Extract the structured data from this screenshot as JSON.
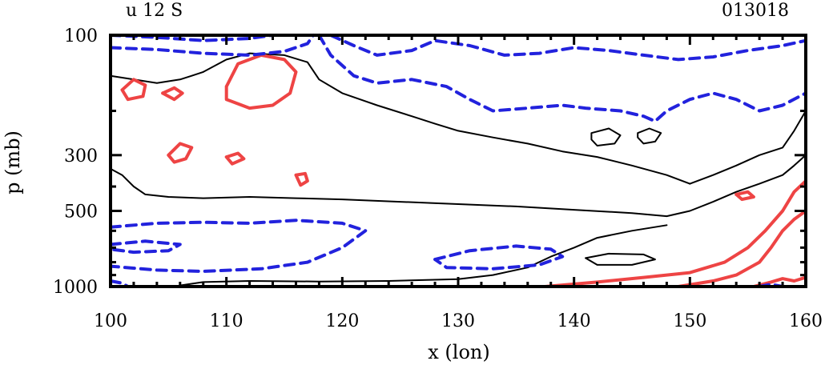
{
  "chart_data": {
    "type": "contour",
    "title_left": "u 12 S",
    "title_right": "013018",
    "xlabel": "x (lon)",
    "ylabel": "p (mb)",
    "xlim": [
      100,
      160
    ],
    "ylim": [
      1000,
      100
    ],
    "y_scale": "log",
    "x_ticks": [
      100,
      110,
      120,
      130,
      140,
      150,
      160
    ],
    "y_ticks": [
      100,
      300,
      500,
      1000
    ],
    "colors": {
      "positive": "#ee4444",
      "negative": "#2222dd",
      "zero": "#000000"
    },
    "contours": [
      {
        "kind": "zero",
        "points": [
          [
            100,
            340
          ],
          [
            101,
            360
          ],
          [
            102,
            400
          ],
          [
            103,
            430
          ],
          [
            105,
            440
          ],
          [
            108,
            445
          ],
          [
            112,
            440
          ],
          [
            116,
            445
          ],
          [
            120,
            450
          ],
          [
            125,
            460
          ],
          [
            130,
            470
          ],
          [
            135,
            480
          ],
          [
            140,
            495
          ],
          [
            145,
            510
          ],
          [
            148,
            525
          ],
          [
            150,
            500
          ],
          [
            152,
            460
          ],
          [
            154,
            420
          ],
          [
            156,
            390
          ],
          [
            158,
            360
          ],
          [
            159,
            330
          ],
          [
            160,
            300
          ]
        ]
      },
      {
        "kind": "zero",
        "points": [
          [
            108,
            140
          ],
          [
            110,
            125
          ],
          [
            112,
            118
          ],
          [
            115,
            120
          ],
          [
            117,
            128
          ],
          [
            118,
            150
          ],
          [
            120,
            170
          ],
          [
            123,
            190
          ],
          [
            126,
            210
          ],
          [
            128,
            225
          ],
          [
            130,
            240
          ],
          [
            133,
            255
          ],
          [
            136,
            270
          ],
          [
            139,
            290
          ],
          [
            142,
            305
          ],
          [
            145,
            330
          ],
          [
            148,
            360
          ],
          [
            150,
            390
          ]
        ]
      },
      {
        "kind": "zero",
        "points": [
          [
            100,
            145
          ],
          [
            102,
            150
          ],
          [
            104,
            155
          ],
          [
            106,
            150
          ],
          [
            107,
            145
          ],
          [
            108,
            140
          ]
        ]
      },
      {
        "kind": "zero",
        "points": [
          [
            150,
            390
          ],
          [
            152,
            360
          ],
          [
            154,
            330
          ],
          [
            156,
            300
          ],
          [
            158,
            280
          ],
          [
            159,
            240
          ],
          [
            160,
            200
          ]
        ]
      },
      {
        "kind": "zero",
        "points": [
          [
            106,
            990
          ],
          [
            108,
            960
          ],
          [
            112,
            950
          ],
          [
            118,
            955
          ],
          [
            124,
            950
          ],
          [
            130,
            935
          ],
          [
            133,
            900
          ],
          [
            136,
            840
          ],
          [
            138,
            760
          ],
          [
            140,
            700
          ],
          [
            142,
            640
          ],
          [
            145,
            600
          ],
          [
            148,
            570
          ]
        ]
      },
      {
        "kind": "zero",
        "points": [
          [
            141.5,
            245
          ],
          [
            143,
            235
          ],
          [
            144,
            250
          ],
          [
            143.5,
            270
          ],
          [
            142,
            275
          ],
          [
            141.5,
            260
          ],
          [
            141.5,
            245
          ]
        ]
      },
      {
        "kind": "zero",
        "points": [
          [
            145.5,
            245
          ],
          [
            146.5,
            235
          ],
          [
            147.5,
            245
          ],
          [
            147,
            265
          ],
          [
            146,
            270
          ],
          [
            145.5,
            255
          ],
          [
            145.5,
            245
          ]
        ]
      },
      {
        "kind": "zero",
        "points": [
          [
            141,
            770
          ],
          [
            143,
            740
          ],
          [
            146,
            745
          ],
          [
            147,
            780
          ],
          [
            145,
            820
          ],
          [
            142,
            820
          ],
          [
            141,
            770
          ]
        ]
      },
      {
        "kind": "positive",
        "points": [
          [
            110,
            160
          ],
          [
            111,
            130
          ],
          [
            113,
            120
          ],
          [
            115,
            125
          ],
          [
            116,
            140
          ],
          [
            115.5,
            170
          ],
          [
            114,
            190
          ],
          [
            112,
            195
          ],
          [
            110,
            180
          ],
          [
            110,
            160
          ]
        ]
      },
      {
        "kind": "positive",
        "points": [
          [
            101,
            165
          ],
          [
            102,
            150
          ],
          [
            103,
            158
          ],
          [
            102.8,
            175
          ],
          [
            101.5,
            180
          ],
          [
            101,
            165
          ]
        ]
      },
      {
        "kind": "positive",
        "points": [
          [
            104.5,
            170
          ],
          [
            105.5,
            162
          ],
          [
            106.2,
            170
          ],
          [
            105.5,
            180
          ],
          [
            104.5,
            170
          ]
        ]
      },
      {
        "kind": "positive",
        "points": [
          [
            105,
            300
          ],
          [
            106,
            270
          ],
          [
            107,
            280
          ],
          [
            106.5,
            310
          ],
          [
            105.5,
            320
          ],
          [
            105,
            300
          ]
        ]
      },
      {
        "kind": "positive",
        "points": [
          [
            110,
            305
          ],
          [
            111,
            295
          ],
          [
            111.5,
            310
          ],
          [
            110.5,
            325
          ],
          [
            110,
            305
          ]
        ]
      },
      {
        "kind": "positive",
        "points": [
          [
            116,
            360
          ],
          [
            116.8,
            355
          ],
          [
            117,
            380
          ],
          [
            116.4,
            395
          ],
          [
            116,
            360
          ]
        ]
      },
      {
        "kind": "positive",
        "points": [
          [
            137.5,
            1000
          ],
          [
            142,
            960
          ],
          [
            146,
            920
          ],
          [
            150,
            880
          ],
          [
            153,
            800
          ],
          [
            155,
            700
          ],
          [
            156.5,
            600
          ],
          [
            158,
            500
          ],
          [
            159,
            420
          ],
          [
            160,
            380
          ]
        ]
      },
      {
        "kind": "positive",
        "points": [
          [
            149,
            1000
          ],
          [
            152,
            950
          ],
          [
            154,
            900
          ],
          [
            156,
            800
          ],
          [
            157,
            700
          ],
          [
            158,
            600
          ],
          [
            159,
            540
          ],
          [
            160,
            500
          ]
        ]
      },
      {
        "kind": "positive",
        "points": [
          [
            154,
            430
          ],
          [
            155,
            420
          ],
          [
            155.5,
            440
          ],
          [
            154.5,
            450
          ],
          [
            154,
            430
          ]
        ]
      },
      {
        "kind": "positive",
        "points": [
          [
            155.5,
            1000
          ],
          [
            157,
            960
          ],
          [
            158,
            930
          ],
          [
            159,
            950
          ],
          [
            160,
            920
          ]
        ]
      },
      {
        "kind": "negative",
        "points": [
          [
            100,
            100
          ],
          [
            104,
            102
          ],
          [
            108,
            105
          ],
          [
            112,
            103
          ],
          [
            114,
            100
          ]
        ]
      },
      {
        "kind": "negative",
        "points": [
          [
            100,
            112
          ],
          [
            104,
            114
          ],
          [
            108,
            118
          ],
          [
            112,
            120
          ],
          [
            115,
            116
          ],
          [
            117,
            108
          ],
          [
            117.5,
            100
          ]
        ]
      },
      {
        "kind": "negative",
        "points": [
          [
            118,
            100
          ],
          [
            119,
            120
          ],
          [
            121,
            145
          ],
          [
            123,
            155
          ],
          [
            126,
            150
          ],
          [
            129,
            160
          ],
          [
            131,
            180
          ],
          [
            133,
            200
          ],
          [
            136,
            195
          ],
          [
            139,
            190
          ],
          [
            141,
            195
          ],
          [
            144,
            200
          ],
          [
            146,
            210
          ],
          [
            147,
            220
          ],
          [
            148,
            200
          ],
          [
            150,
            180
          ],
          [
            152,
            170
          ],
          [
            154,
            180
          ],
          [
            156,
            200
          ],
          [
            158,
            190
          ],
          [
            160,
            170
          ]
        ]
      },
      {
        "kind": "negative",
        "points": [
          [
            119,
            100
          ],
          [
            121,
            110
          ],
          [
            123,
            120
          ],
          [
            126,
            115
          ],
          [
            128,
            105
          ],
          [
            131,
            110
          ],
          [
            134,
            120
          ],
          [
            137,
            118
          ],
          [
            140,
            112
          ],
          [
            143,
            115
          ],
          [
            146,
            120
          ],
          [
            149,
            125
          ],
          [
            152,
            122
          ],
          [
            155,
            115
          ],
          [
            158,
            110
          ],
          [
            160,
            105
          ]
        ]
      },
      {
        "kind": "negative",
        "points": [
          [
            100,
            580
          ],
          [
            104,
            560
          ],
          [
            108,
            555
          ],
          [
            112,
            560
          ],
          [
            116,
            545
          ],
          [
            120,
            560
          ],
          [
            122,
            600
          ],
          [
            120,
            700
          ],
          [
            117,
            800
          ],
          [
            113,
            850
          ],
          [
            108,
            870
          ],
          [
            104,
            860
          ],
          [
            100,
            830
          ]
        ]
      },
      {
        "kind": "negative",
        "points": [
          [
            100,
            680
          ],
          [
            103,
            660
          ],
          [
            106,
            680
          ],
          [
            105,
            720
          ],
          [
            102,
            730
          ],
          [
            100,
            710
          ]
        ]
      },
      {
        "kind": "negative",
        "points": [
          [
            128,
            780
          ],
          [
            131,
            720
          ],
          [
            135,
            690
          ],
          [
            138,
            710
          ],
          [
            139,
            760
          ],
          [
            137,
            820
          ],
          [
            133,
            850
          ],
          [
            129,
            840
          ],
          [
            128,
            780
          ]
        ]
      },
      {
        "kind": "negative",
        "points": [
          [
            100,
            950
          ],
          [
            101,
            970
          ],
          [
            101.5,
            1000
          ]
        ]
      },
      {
        "kind": "negative",
        "points": [
          [
            156,
            1000
          ],
          [
            157,
            980
          ],
          [
            158,
            1000
          ]
        ]
      }
    ]
  }
}
